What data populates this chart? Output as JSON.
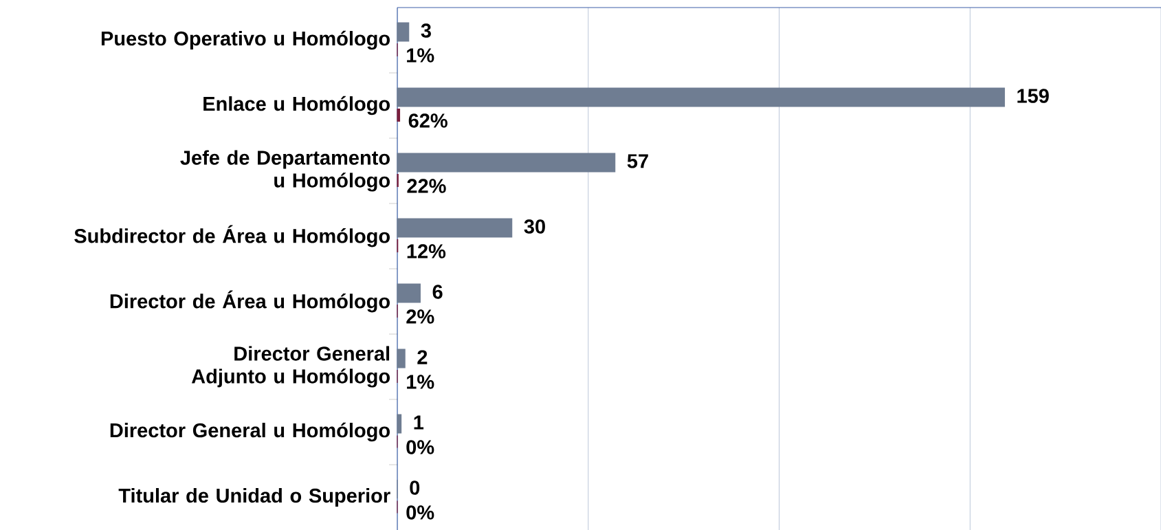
{
  "chart_data": {
    "type": "bar",
    "orientation": "horizontal",
    "categories": [
      "Puesto Operativo u Homólogo",
      "Enlace u Homólogo",
      "Jefe de Departamento u Homólogo",
      "Subdirector de Área u Homólogo",
      "Director de Área u Homólogo",
      "Director General Adjunto u Homólogo",
      "Director General u Homólogo",
      "Titular de Unidad o Superior"
    ],
    "series": [
      {
        "color": "#6f7d92",
        "values": [
          3,
          159,
          57,
          30,
          6,
          2,
          1,
          0
        ]
      },
      {
        "color": "#7a1f3d",
        "values": [
          0.01,
          0.62,
          0.22,
          0.12,
          0.02,
          0.01,
          0,
          0
        ],
        "value_labels": [
          "1%",
          "62%",
          "22%",
          "12%",
          "2%",
          "1%",
          "0%",
          "0%"
        ]
      }
    ],
    "xlim": [
      0,
      200
    ],
    "xticks": [
      {
        "value": 0,
        "label": null
      },
      {
        "value": 50,
        "label": null
      },
      {
        "value": 100,
        "label": null
      },
      {
        "value": 150,
        "label": null
      },
      {
        "value": 200,
        "label": null
      }
    ],
    "tick_labels": "y",
    "grid": "x",
    "data_labels": true
  }
}
